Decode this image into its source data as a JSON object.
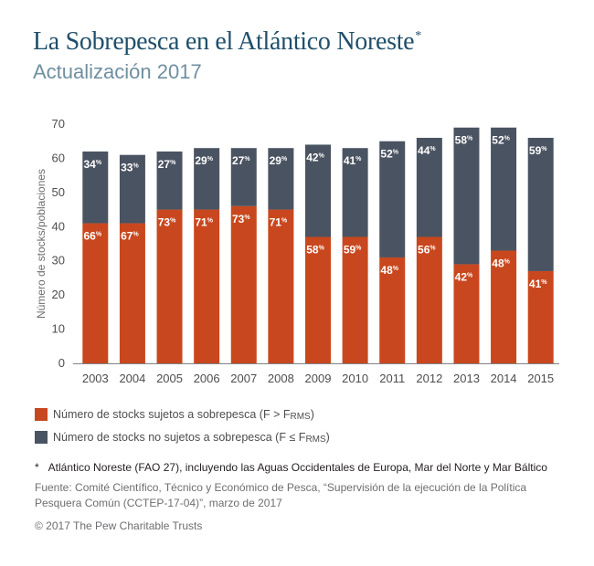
{
  "header": {
    "title": "La Sobrepesca en el Atlántico Noreste",
    "title_mark": "*",
    "subtitle": "Actualización 2017"
  },
  "chart_data": {
    "type": "bar",
    "stacked": true,
    "ylabel": "Número de stocks/poblaciones",
    "ylim": [
      0,
      70
    ],
    "yticks": [
      0,
      10,
      20,
      30,
      40,
      50,
      60,
      70
    ],
    "grid": false,
    "categories": [
      "2003",
      "2004",
      "2005",
      "2006",
      "2007",
      "2008",
      "2009",
      "2010",
      "2011",
      "2012",
      "2013",
      "2014",
      "2015"
    ],
    "series": [
      {
        "name": "Número de stocks sujetos a sobrepesca (F > FRMS)",
        "color": "#c9471e",
        "values": [
          41,
          41,
          45,
          45,
          46,
          45,
          37,
          37,
          31,
          37,
          29,
          33,
          27
        ],
        "labels": [
          "66",
          "67",
          "73",
          "71",
          "73",
          "71",
          "58",
          "59",
          "48",
          "56",
          "42",
          "48",
          "41"
        ]
      },
      {
        "name": "Número de stocks no sujetos a sobrepesca (F ≤ FRMS)",
        "color": "#4a5361",
        "values": [
          21,
          20,
          17,
          18,
          17,
          18,
          27,
          26,
          34,
          29,
          40,
          36,
          39
        ],
        "labels": [
          "34",
          "33",
          "27",
          "29",
          "27",
          "29",
          "42",
          "41",
          "52",
          "44",
          "58",
          "52",
          "59"
        ]
      }
    ],
    "label_suffix": "%"
  },
  "legend": {
    "item1_text": "Número de stocks sujetos a sobrepesca (F > F",
    "item1_sub": "RMS",
    "item1_close": ")",
    "item2_text": "Número de stocks no sujetos a sobrepesca (F ≤ F",
    "item2_sub": "RMS",
    "item2_close": ")"
  },
  "footer": {
    "note_mark": "*",
    "note": "Atlántico Noreste (FAO 27), incluyendo las Aguas Occidentales de Europa, Mar del Norte y Mar Báltico",
    "source": "Fuente: Comité Científico, Técnico y Económico de Pesca, “Supervisión de la ejecución de la Política Pesquera Común (CCTEP-17-04)”, marzo de 2017",
    "copyright": "© 2017 The Pew Charitable Trusts"
  }
}
